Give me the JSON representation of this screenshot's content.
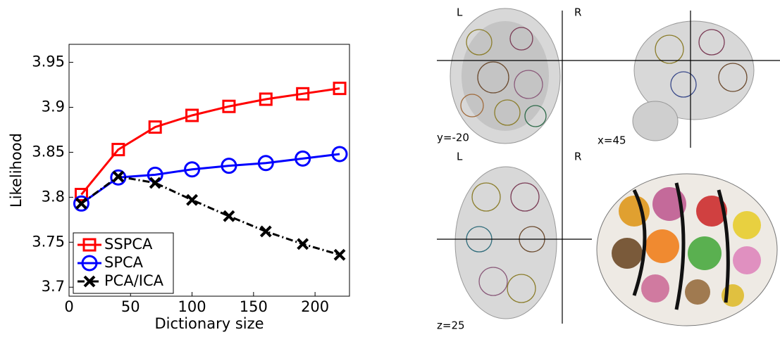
{
  "chart_data": {
    "type": "line",
    "x_label": "Dictionary size",
    "y_label": "Likelihood",
    "x": [
      10,
      40,
      70,
      100,
      130,
      160,
      190,
      220
    ],
    "series": [
      {
        "name": "SSPCA",
        "color": "#ff0000",
        "marker": "square",
        "values": [
          3.803,
          3.853,
          3.878,
          3.891,
          3.901,
          3.909,
          3.915,
          3.921
        ]
      },
      {
        "name": "SPCA",
        "color": "#0000ff",
        "marker": "circle",
        "values": [
          3.793,
          3.822,
          3.825,
          3.831,
          3.835,
          3.838,
          3.843,
          3.848
        ]
      },
      {
        "name": "PCA/ICA",
        "color": "#000000",
        "marker": "x",
        "values": [
          3.793,
          3.823,
          3.816,
          3.797,
          3.779,
          3.762,
          3.748,
          3.736
        ]
      }
    ],
    "xlim": [
      0,
      228
    ],
    "xticks": [
      0,
      50,
      100,
      150,
      200
    ],
    "ylim": [
      3.69,
      3.97
    ],
    "yticks": [
      {
        "value": 3.7,
        "label": "3.7"
      },
      3.75,
      {
        "value": 3.8,
        "label": "3.8"
      },
      3.85,
      {
        "value": 3.9,
        "label": "3.9"
      },
      3.95
    ],
    "legend": "lower left",
    "grid": false
  },
  "brain_views": {
    "coronal": {
      "left": "L",
      "right": "R",
      "coord": "y=-20"
    },
    "sagittal": {
      "coord": "x=45"
    },
    "axial": {
      "left": "L",
      "right": "R",
      "coord": "z=25"
    }
  }
}
